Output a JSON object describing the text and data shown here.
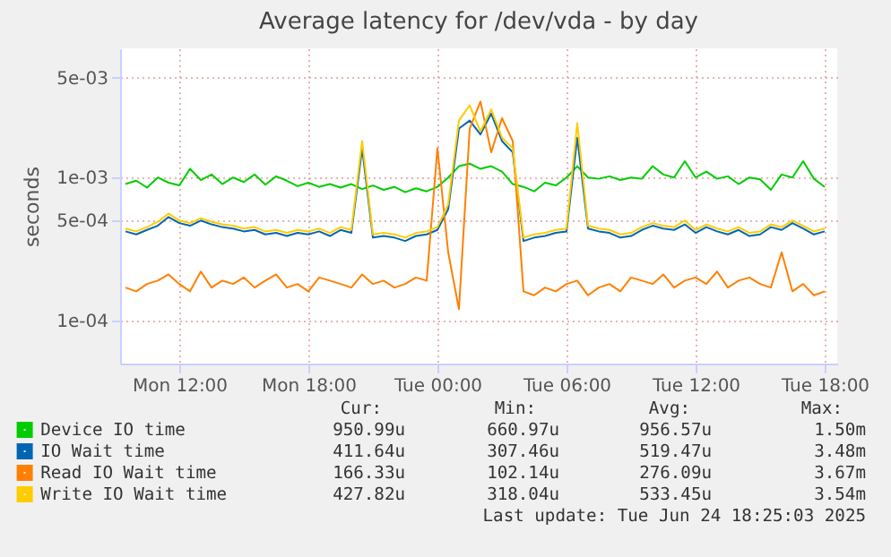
{
  "chart_data": {
    "type": "line",
    "title": "Average latency for /dev/vda - by day",
    "ylabel": "seconds",
    "log": "y",
    "grid": true,
    "legend": "bottom",
    "xlim": [
      "2025-06-23T09:15",
      "2025-06-24T18:35"
    ],
    "xticks": [
      {
        "value": "2025-06-23T12:00",
        "label": "Mon 12:00"
      },
      {
        "value": "2025-06-23T18:00",
        "label": "Mon 18:00"
      },
      {
        "value": "2025-06-24T00:00",
        "label": "Tue 00:00"
      },
      {
        "value": "2025-06-24T06:00",
        "label": "Tue 06:00"
      },
      {
        "value": "2025-06-24T12:00",
        "label": "Tue 12:00"
      },
      {
        "value": "2025-06-24T18:00",
        "label": "Tue 18:00"
      }
    ],
    "ylim": [
      5e-05,
      0.008
    ],
    "yticks": [
      {
        "value": 0.0001,
        "label": "1e-04"
      },
      {
        "value": 0.0005,
        "label": "5e-04"
      },
      {
        "value": 0.001,
        "label": "1e-03"
      },
      {
        "value": 0.005,
        "label": "5e-03"
      }
    ],
    "x": [
      "2025-06-23T09:30",
      "2025-06-23T10:00",
      "2025-06-23T10:30",
      "2025-06-23T11:00",
      "2025-06-23T11:30",
      "2025-06-23T12:00",
      "2025-06-23T12:30",
      "2025-06-23T13:00",
      "2025-06-23T13:30",
      "2025-06-23T14:00",
      "2025-06-23T14:30",
      "2025-06-23T15:00",
      "2025-06-23T15:30",
      "2025-06-23T16:00",
      "2025-06-23T16:30",
      "2025-06-23T17:00",
      "2025-06-23T17:30",
      "2025-06-23T18:00",
      "2025-06-23T18:30",
      "2025-06-23T19:00",
      "2025-06-23T19:30",
      "2025-06-23T20:00",
      "2025-06-23T20:30",
      "2025-06-23T21:00",
      "2025-06-23T21:30",
      "2025-06-23T22:00",
      "2025-06-23T22:30",
      "2025-06-23T23:00",
      "2025-06-23T23:30",
      "2025-06-24T00:00",
      "2025-06-24T00:30",
      "2025-06-24T01:00",
      "2025-06-24T01:30",
      "2025-06-24T02:00",
      "2025-06-24T02:30",
      "2025-06-24T03:00",
      "2025-06-24T03:30",
      "2025-06-24T04:00",
      "2025-06-24T04:30",
      "2025-06-24T05:00",
      "2025-06-24T05:30",
      "2025-06-24T06:00",
      "2025-06-24T06:30",
      "2025-06-24T07:00",
      "2025-06-24T07:30",
      "2025-06-24T08:00",
      "2025-06-24T08:30",
      "2025-06-24T09:00",
      "2025-06-24T09:30",
      "2025-06-24T10:00",
      "2025-06-24T10:30",
      "2025-06-24T11:00",
      "2025-06-24T11:30",
      "2025-06-24T12:00",
      "2025-06-24T12:30",
      "2025-06-24T13:00",
      "2025-06-24T13:30",
      "2025-06-24T14:00",
      "2025-06-24T14:30",
      "2025-06-24T15:00",
      "2025-06-24T15:30",
      "2025-06-24T16:00",
      "2025-06-24T16:30",
      "2025-06-24T17:00",
      "2025-06-24T17:30",
      "2025-06-24T18:00"
    ],
    "series": [
      {
        "name": "Device IO time",
        "color": "#00cc00",
        "values": [
          0.0009,
          0.00095,
          0.00085,
          0.001,
          0.00092,
          0.00088,
          0.00115,
          0.00096,
          0.00105,
          0.0009,
          0.001,
          0.00093,
          0.00105,
          0.00089,
          0.00102,
          0.00095,
          0.00087,
          0.00092,
          0.00086,
          0.0009,
          0.00085,
          0.0009,
          0.00083,
          0.00088,
          0.00082,
          0.00086,
          0.00079,
          0.00084,
          0.0008,
          0.00086,
          0.001,
          0.0012,
          0.00125,
          0.00115,
          0.0012,
          0.0011,
          0.0009,
          0.00086,
          0.0008,
          0.00092,
          0.00088,
          0.001,
          0.0012,
          0.001,
          0.00098,
          0.00102,
          0.00096,
          0.001,
          0.00098,
          0.0012,
          0.00105,
          0.001,
          0.0013,
          0.001,
          0.0011,
          0.00098,
          0.00102,
          0.0009,
          0.001,
          0.00097,
          0.00082,
          0.00105,
          0.001,
          0.0013,
          0.00098,
          0.00086
        ]
      },
      {
        "name": "IO Wait time",
        "color": "#0066b3",
        "values": [
          0.00042,
          0.0004,
          0.00043,
          0.00046,
          0.00053,
          0.00048,
          0.00046,
          0.0005,
          0.00047,
          0.00045,
          0.00044,
          0.00042,
          0.00043,
          0.0004,
          0.00041,
          0.00039,
          0.00041,
          0.0004,
          0.00042,
          0.00039,
          0.00043,
          0.00041,
          0.0016,
          0.00038,
          0.00039,
          0.00038,
          0.00036,
          0.00039,
          0.0004,
          0.00043,
          0.0006,
          0.0022,
          0.0025,
          0.002,
          0.0028,
          0.0018,
          0.0015,
          0.00036,
          0.00038,
          0.00039,
          0.00041,
          0.00042,
          0.0019,
          0.00044,
          0.00042,
          0.00041,
          0.00038,
          0.00039,
          0.00043,
          0.00046,
          0.00044,
          0.00043,
          0.00047,
          0.00041,
          0.00045,
          0.00042,
          0.0004,
          0.00043,
          0.00039,
          0.0004,
          0.00045,
          0.00043,
          0.00048,
          0.00044,
          0.0004,
          0.00042
        ]
      },
      {
        "name": "Read IO Wait time",
        "color": "#ff8000",
        "values": [
          0.00017,
          0.00016,
          0.00018,
          0.00019,
          0.00021,
          0.00018,
          0.00016,
          0.00022,
          0.00017,
          0.00019,
          0.00018,
          0.0002,
          0.00017,
          0.00019,
          0.00021,
          0.00017,
          0.00018,
          0.00016,
          0.0002,
          0.00019,
          0.00018,
          0.00017,
          0.00021,
          0.00018,
          0.00019,
          0.00017,
          0.00018,
          0.0002,
          0.00019,
          0.0016,
          0.0003,
          0.00012,
          0.0022,
          0.0034,
          0.0015,
          0.0026,
          0.0018,
          0.00016,
          0.00015,
          0.00017,
          0.00016,
          0.00018,
          0.00019,
          0.00015,
          0.00017,
          0.00018,
          0.00016,
          0.0002,
          0.00019,
          0.00018,
          0.00021,
          0.00017,
          0.00019,
          0.0002,
          0.00018,
          0.00022,
          0.00017,
          0.00019,
          0.0002,
          0.00018,
          0.00017,
          0.0003,
          0.00016,
          0.00018,
          0.00015,
          0.00016
        ]
      },
      {
        "name": "Write IO Wait time",
        "color": "#ffcc00",
        "values": [
          0.00044,
          0.00042,
          0.00045,
          0.00049,
          0.00056,
          0.0005,
          0.00048,
          0.00052,
          0.00049,
          0.00047,
          0.00046,
          0.00044,
          0.00045,
          0.00042,
          0.00043,
          0.00041,
          0.00043,
          0.00042,
          0.00044,
          0.00041,
          0.00045,
          0.00043,
          0.0018,
          0.0004,
          0.00041,
          0.0004,
          0.00038,
          0.00041,
          0.00042,
          0.00045,
          0.00065,
          0.0025,
          0.0032,
          0.0021,
          0.003,
          0.0019,
          0.0016,
          0.00038,
          0.0004,
          0.00041,
          0.00043,
          0.00044,
          0.0024,
          0.00046,
          0.00044,
          0.00043,
          0.0004,
          0.00041,
          0.00045,
          0.00048,
          0.00046,
          0.00045,
          0.0005,
          0.00043,
          0.00047,
          0.00044,
          0.00042,
          0.00045,
          0.00041,
          0.00042,
          0.00047,
          0.00045,
          0.0005,
          0.00046,
          0.00042,
          0.00044
        ]
      }
    ],
    "annotations": [
      "Cur:",
      "Min:",
      "Avg:",
      "Max:",
      "950.99u",
      "660.97u",
      "956.57u",
      "1.50m",
      "411.64u",
      "307.46u",
      "519.47u",
      "3.48m",
      "166.33u",
      "102.14u",
      "276.09u",
      "3.67m",
      "427.82u",
      "318.04u",
      "533.45u",
      "3.54m",
      "Last update: Tue Jun 24 18:25:03 2025"
    ]
  }
}
